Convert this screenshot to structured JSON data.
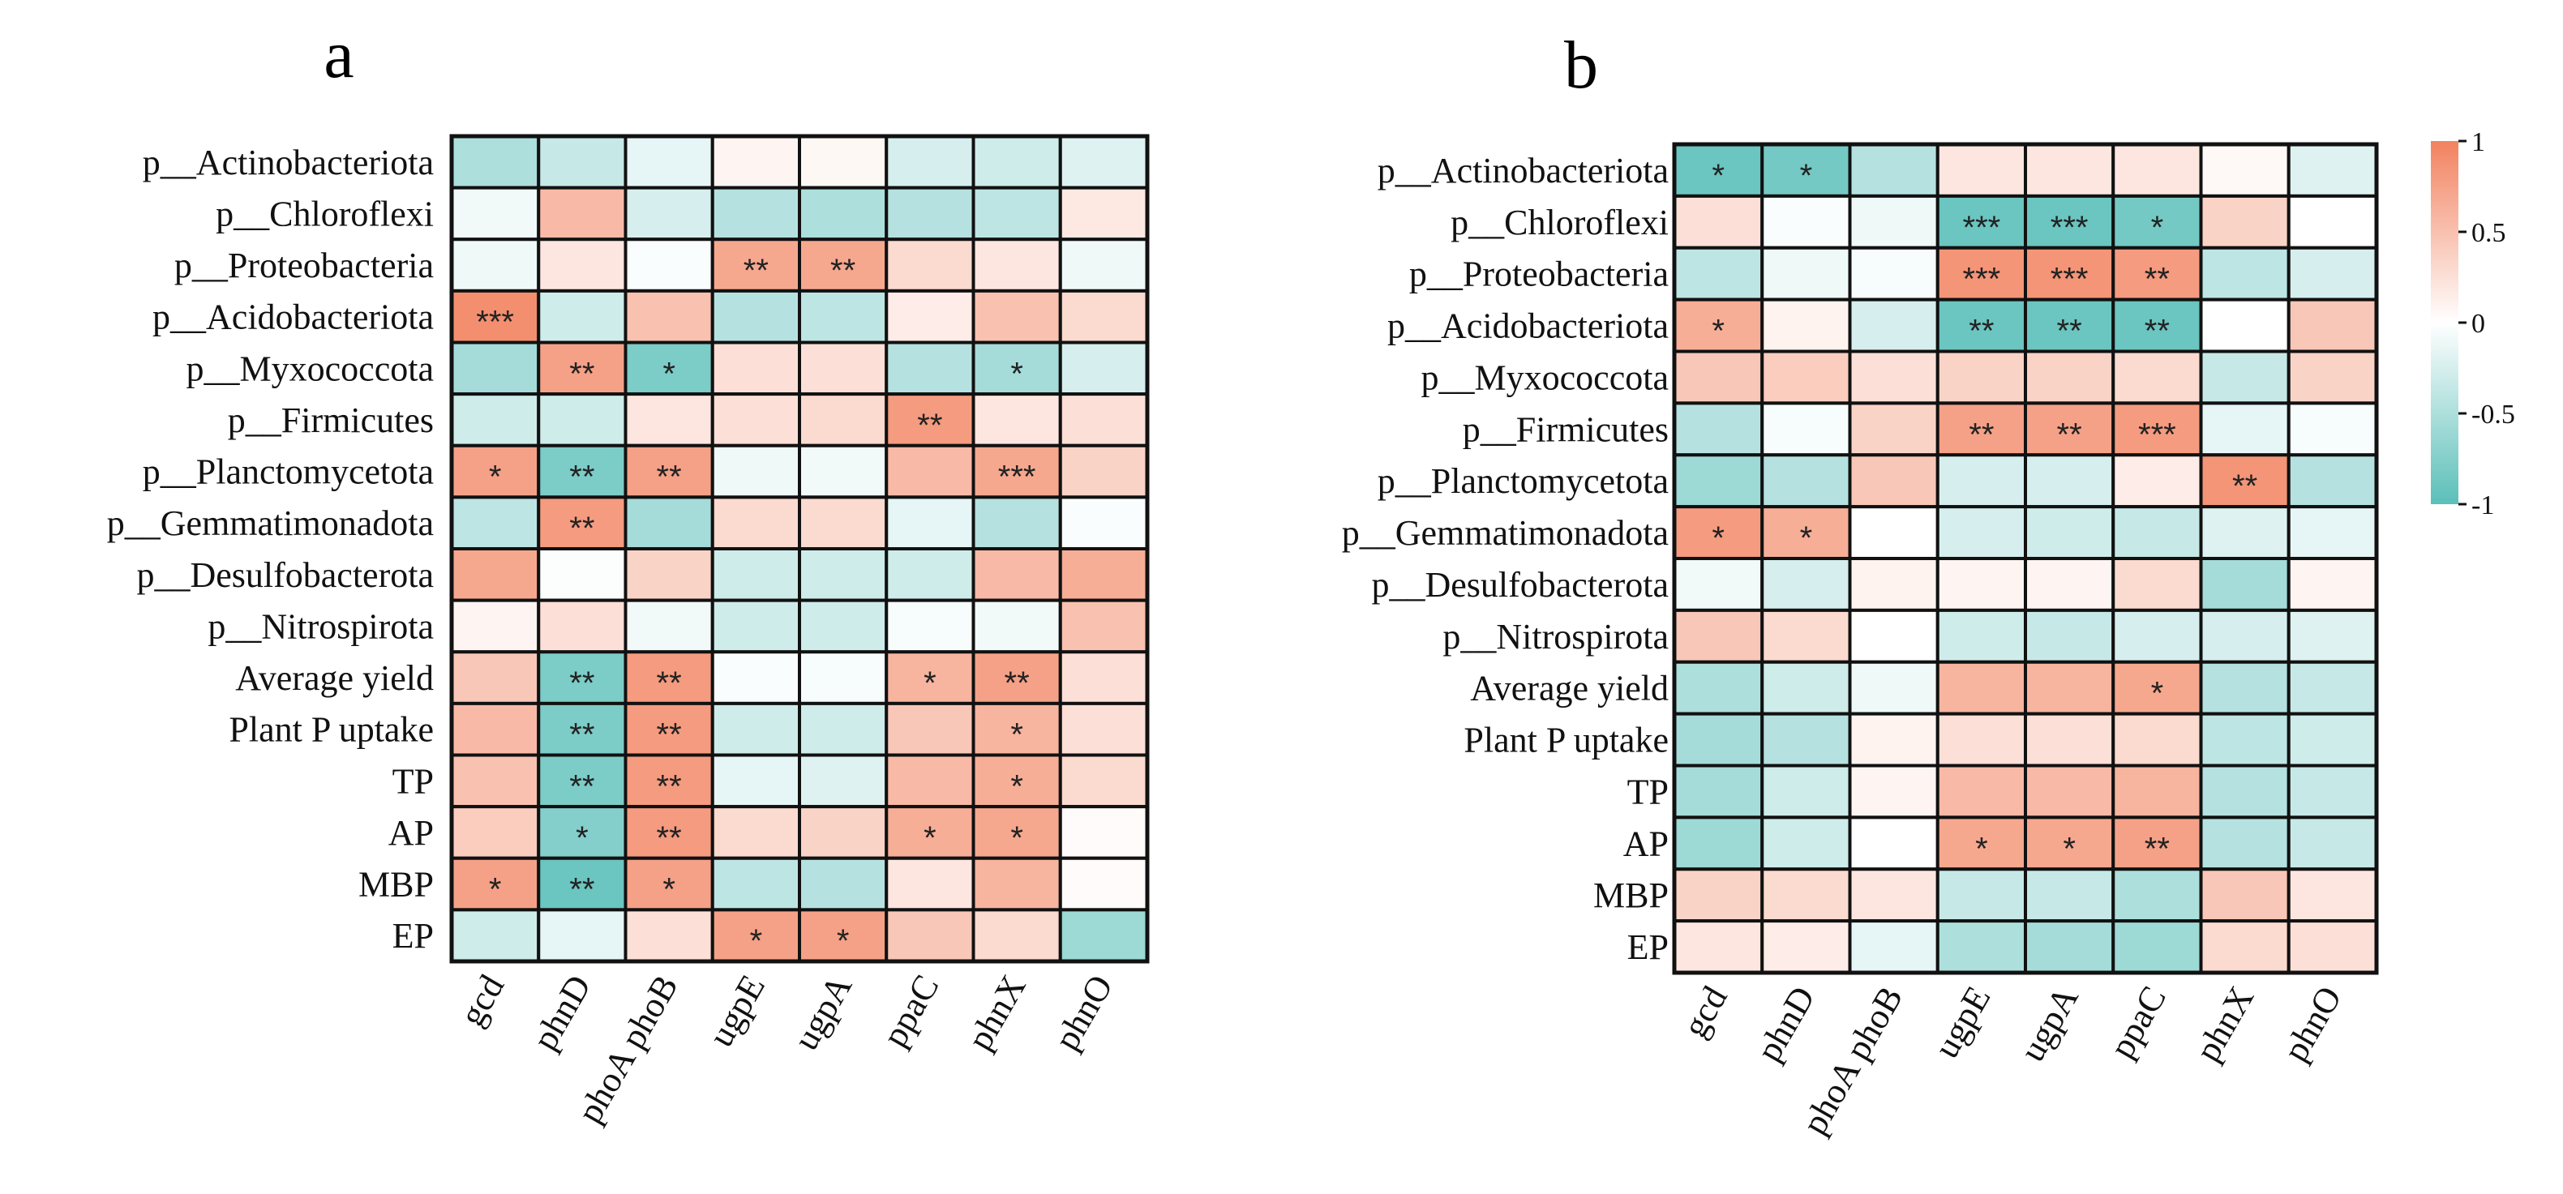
{
  "figure": {
    "colorscale": {
      "neg": "#5bbfb9",
      "mid": "#ffffff",
      "pos": "#f2825f"
    },
    "colorbar_ticks": [
      "1",
      "0.5",
      "0",
      "-0.5",
      "-1"
    ],
    "colorbar_tick_values": [
      1,
      0.5,
      0,
      -0.5,
      -1
    ]
  },
  "chart_data": [
    {
      "type": "heatmap",
      "title": "a",
      "rows": [
        "p__Actinobacteriota",
        "p__Chloroflexi",
        "p__Proteobacteria",
        "p__Acidobacteriota",
        "p__Myxococcota",
        "p__Firmicutes",
        "p__Planctomycetota",
        "p__Gemmatimonadota",
        "p__Desulfobacterota",
        "p__Nitrospirota",
        "Average yield",
        "Plant P uptake",
        "TP",
        "AP",
        "MBP",
        "EP"
      ],
      "columns": [
        "gcd",
        "phnD",
        "phoA phoB",
        "ugpE",
        "ugpA",
        "ppaC",
        "phnX",
        "phnO"
      ],
      "values": [
        [
          -0.5,
          -0.35,
          -0.15,
          0.08,
          0.06,
          -0.25,
          -0.3,
          -0.2
        ],
        [
          -0.08,
          0.55,
          -0.25,
          -0.45,
          -0.5,
          -0.45,
          -0.4,
          0.18
        ],
        [
          -0.1,
          0.2,
          -0.03,
          0.7,
          0.7,
          0.3,
          0.2,
          -0.1
        ],
        [
          0.9,
          -0.3,
          0.5,
          -0.45,
          -0.4,
          0.15,
          0.5,
          0.3
        ],
        [
          -0.55,
          0.75,
          -0.8,
          0.25,
          0.25,
          -0.45,
          -0.55,
          -0.25
        ],
        [
          -0.3,
          -0.3,
          0.2,
          0.25,
          0.3,
          0.8,
          0.2,
          0.25
        ],
        [
          0.75,
          -0.8,
          0.75,
          -0.1,
          -0.08,
          0.55,
          0.7,
          0.35
        ],
        [
          -0.4,
          0.8,
          -0.55,
          0.3,
          0.3,
          -0.15,
          -0.45,
          -0.03
        ],
        [
          0.7,
          -0.02,
          0.35,
          -0.3,
          -0.3,
          -0.3,
          0.55,
          0.65
        ],
        [
          0.08,
          0.25,
          -0.08,
          -0.3,
          -0.3,
          -0.05,
          -0.08,
          0.5
        ],
        [
          0.45,
          -0.8,
          0.8,
          -0.03,
          -0.05,
          0.6,
          0.75,
          0.25
        ],
        [
          0.55,
          -0.8,
          0.8,
          -0.3,
          -0.3,
          0.45,
          0.6,
          0.25
        ],
        [
          0.5,
          -0.8,
          0.8,
          -0.15,
          -0.2,
          0.55,
          0.65,
          0.3
        ],
        [
          0.4,
          -0.75,
          0.8,
          0.3,
          0.35,
          0.65,
          0.7,
          0.03
        ],
        [
          0.75,
          -0.9,
          0.75,
          -0.4,
          -0.45,
          0.2,
          0.6,
          0.03
        ],
        [
          -0.3,
          -0.15,
          0.25,
          0.75,
          0.75,
          0.45,
          0.3,
          -0.6
        ]
      ],
      "significance": [
        [
          "",
          "",
          "",
          "",
          "",
          "",
          "",
          ""
        ],
        [
          "",
          "",
          "",
          "",
          "",
          "",
          "",
          ""
        ],
        [
          "",
          "",
          "",
          "**",
          "**",
          "",
          "",
          ""
        ],
        [
          "***",
          "",
          "",
          "",
          "",
          "",
          "",
          ""
        ],
        [
          "",
          "**",
          "*",
          "",
          "",
          "",
          "*",
          ""
        ],
        [
          "",
          "",
          "",
          "",
          "",
          "**",
          "",
          ""
        ],
        [
          "*",
          "**",
          "**",
          "",
          "",
          "",
          "***",
          ""
        ],
        [
          "",
          "**",
          "",
          "",
          "",
          "",
          "",
          ""
        ],
        [
          "",
          "",
          "",
          "",
          "",
          "",
          "",
          ""
        ],
        [
          "",
          "",
          "",
          "",
          "",
          "",
          "",
          ""
        ],
        [
          "",
          "**",
          "**",
          "",
          "",
          "*",
          "**",
          ""
        ],
        [
          "",
          "**",
          "**",
          "",
          "",
          "",
          "*",
          ""
        ],
        [
          "",
          "**",
          "**",
          "",
          "",
          "",
          "*",
          ""
        ],
        [
          "",
          "*",
          "**",
          "",
          "",
          "*",
          "*",
          ""
        ],
        [
          "*",
          "**",
          "*",
          "",
          "",
          "",
          "",
          ""
        ],
        [
          "",
          "",
          "",
          "*",
          "*",
          "",
          "",
          ""
        ]
      ]
    },
    {
      "type": "heatmap",
      "title": "b",
      "rows": [
        "p__Actinobacteriota",
        "p__Chloroflexi",
        "p__Proteobacteria",
        "p__Acidobacteriota",
        "p__Myxococcota",
        "p__Firmicutes",
        "p__Planctomycetota",
        "p__Gemmatimonadota",
        "p__Desulfobacterota",
        "p__Nitrospirota",
        "Average yield",
        "Plant P uptake",
        "TP",
        "AP",
        "MBP",
        "EP"
      ],
      "columns": [
        "gcd",
        "phnD",
        "phoA phoB",
        "ugpE",
        "ugpA",
        "ppaC",
        "phnX",
        "phnO"
      ],
      "values": [
        [
          -0.9,
          -0.85,
          -0.45,
          0.2,
          0.2,
          0.2,
          0.05,
          -0.2
        ],
        [
          0.25,
          -0.03,
          -0.1,
          -0.9,
          -0.9,
          -0.85,
          0.35,
          0.0
        ],
        [
          -0.4,
          -0.1,
          -0.05,
          0.85,
          0.85,
          0.8,
          -0.4,
          -0.25
        ],
        [
          0.65,
          0.1,
          -0.25,
          -0.9,
          -0.9,
          -0.9,
          0.0,
          0.45
        ],
        [
          0.45,
          0.4,
          0.25,
          0.35,
          0.35,
          0.3,
          -0.35,
          0.35
        ],
        [
          -0.45,
          -0.05,
          0.35,
          0.75,
          0.75,
          0.8,
          -0.15,
          -0.05
        ],
        [
          -0.6,
          -0.45,
          0.45,
          -0.25,
          -0.25,
          0.15,
          0.85,
          -0.45
        ],
        [
          0.8,
          0.65,
          0.0,
          -0.25,
          -0.3,
          -0.35,
          -0.2,
          -0.15
        ],
        [
          -0.08,
          -0.25,
          0.1,
          0.08,
          0.08,
          0.3,
          -0.55,
          0.08
        ],
        [
          0.45,
          0.3,
          0.0,
          -0.3,
          -0.35,
          -0.25,
          -0.25,
          -0.2
        ],
        [
          -0.5,
          -0.3,
          -0.1,
          0.6,
          0.6,
          0.7,
          -0.45,
          -0.35
        ],
        [
          -0.55,
          -0.45,
          0.1,
          0.25,
          0.25,
          0.3,
          -0.4,
          -0.3
        ],
        [
          -0.55,
          -0.3,
          0.08,
          0.55,
          0.55,
          0.6,
          -0.45,
          -0.35
        ],
        [
          -0.6,
          -0.3,
          0.0,
          0.7,
          0.7,
          0.75,
          -0.45,
          -0.35
        ],
        [
          0.35,
          0.3,
          0.2,
          -0.35,
          -0.35,
          -0.5,
          0.45,
          0.2
        ],
        [
          0.2,
          0.15,
          -0.15,
          -0.5,
          -0.55,
          -0.6,
          0.3,
          0.25
        ]
      ],
      "significance": [
        [
          "*",
          "*",
          "",
          "",
          "",
          "",
          "",
          ""
        ],
        [
          "",
          "",
          "",
          "***",
          "***",
          "*",
          "",
          ""
        ],
        [
          "",
          "",
          "",
          "***",
          "***",
          "**",
          "",
          ""
        ],
        [
          "*",
          "",
          "",
          "**",
          "**",
          "**",
          "",
          ""
        ],
        [
          "",
          "",
          "",
          "",
          "",
          "",
          "",
          ""
        ],
        [
          "",
          "",
          "",
          "**",
          "**",
          "***",
          "",
          ""
        ],
        [
          "",
          "",
          "",
          "",
          "",
          "",
          "**",
          ""
        ],
        [
          "*",
          "*",
          "",
          "",
          "",
          "",
          "",
          ""
        ],
        [
          "",
          "",
          "",
          "",
          "",
          "",
          "",
          ""
        ],
        [
          "",
          "",
          "",
          "",
          "",
          "",
          "",
          ""
        ],
        [
          "",
          "",
          "",
          "",
          "",
          "*",
          "",
          ""
        ],
        [
          "",
          "",
          "",
          "",
          "",
          "",
          "",
          ""
        ],
        [
          "",
          "",
          "",
          "",
          "",
          "",
          "",
          ""
        ],
        [
          "",
          "",
          "",
          "*",
          "*",
          "**",
          "",
          ""
        ],
        [
          "",
          "",
          "",
          "",
          "",
          "",
          "",
          ""
        ],
        [
          "",
          "",
          "",
          "",
          "",
          "",
          "",
          ""
        ]
      ]
    }
  ]
}
